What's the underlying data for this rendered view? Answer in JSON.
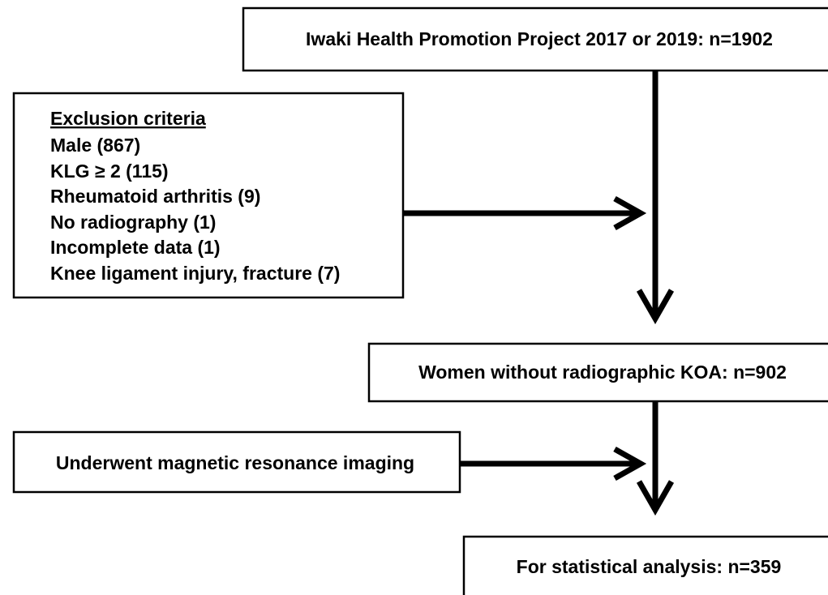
{
  "nodes": [
    {
      "label": "Iwaki Health Promotion Project 2017 or 2019: n=1902"
    },
    {
      "label": "Women without radiographic KOA: n=902"
    },
    {
      "label": "For statistical analysis: n=359"
    }
  ],
  "exclusions": [
    {
      "title": "Exclusion criteria",
      "items": [
        "Male (867)",
        "KLG ≥ 2 (115)",
        "Rheumatoid arthritis (9)",
        "No radiography (1)",
        "Incomplete data (1)",
        "Knee ligament injury, fracture (7)"
      ]
    },
    {
      "title": null,
      "items": [
        "Underwent magnetic resonance imaging"
      ]
    }
  ]
}
